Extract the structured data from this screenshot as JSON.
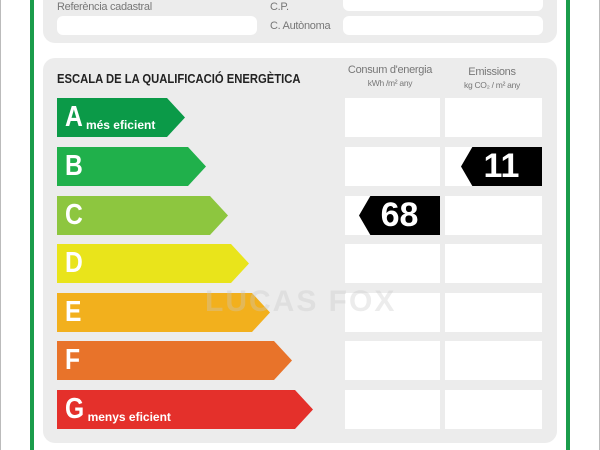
{
  "property_info": {
    "cadastral_label": "Referència cadastral",
    "cadastral_value": "",
    "postal_code_label": "C.P.",
    "postal_code_value": "",
    "region_label": "C. Autònoma",
    "region_value": ""
  },
  "scale": {
    "title": "ESCALA DE LA QUALIFICACIÓ ENERGÈTICA",
    "consumption_header": "Consum d'energia",
    "consumption_unit": "kWh /m² any",
    "emissions_header": "Emissions",
    "emissions_unit": "kg CO₂ / m² any",
    "ratings": [
      {
        "letter": "A",
        "desc": "més eficient",
        "color": "#0b9a48"
      },
      {
        "letter": "B",
        "desc": "",
        "color": "#20b04b"
      },
      {
        "letter": "C",
        "desc": "",
        "color": "#8dc63f"
      },
      {
        "letter": "D",
        "desc": "",
        "color": "#e9e41b"
      },
      {
        "letter": "E",
        "desc": "",
        "color": "#f2b01d"
      },
      {
        "letter": "F",
        "desc": "",
        "color": "#e8732a"
      },
      {
        "letter": "G",
        "desc": "menys eficient",
        "color": "#e4302b"
      }
    ],
    "consumption": {
      "rating": "C",
      "value": "68"
    },
    "emissions": {
      "rating": "B",
      "value": "11"
    }
  },
  "watermark": "LUCAS FOX"
}
